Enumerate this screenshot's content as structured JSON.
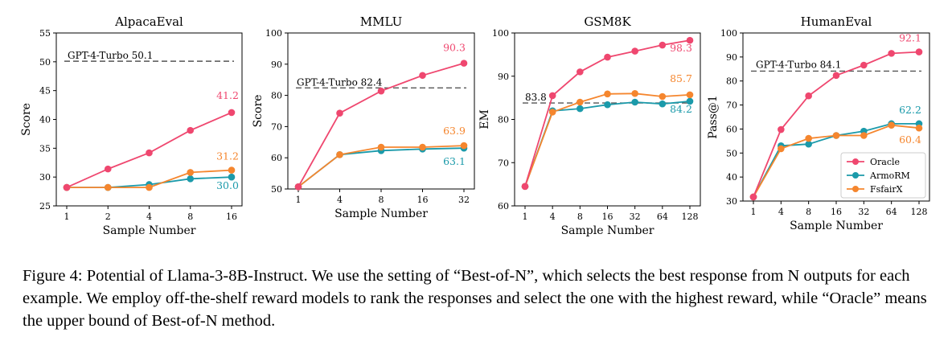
{
  "colors": {
    "oracle": "#ef476f",
    "armorm": "#1b9aaa",
    "fsfairx": "#f5862e",
    "reference": "#555555"
  },
  "legend": {
    "items": [
      "Oracle",
      "ArmoRM",
      "FsfairX"
    ],
    "placement": "lower-right of HumanEval panel"
  },
  "chart_data": [
    {
      "type": "line",
      "title": "AlpacaEval",
      "xlabel": "Sample Number",
      "ylabel": "Score",
      "categories": [
        "1",
        "2",
        "4",
        "8",
        "16"
      ],
      "ylim": [
        25,
        55
      ],
      "yticks": [
        25,
        30,
        35,
        40,
        45,
        50,
        55
      ],
      "grid": false,
      "reference": {
        "label": "GPT-4-Turbo 50.1",
        "value": 50.1
      },
      "series": [
        {
          "name": "Oracle",
          "values": [
            28.2,
            31.4,
            34.2,
            38.1,
            41.2
          ]
        },
        {
          "name": "ArmoRM",
          "values": [
            28.2,
            28.2,
            28.7,
            29.7,
            30.0
          ]
        },
        {
          "name": "FsfairX",
          "values": [
            28.2,
            28.2,
            28.2,
            30.8,
            31.2
          ]
        }
      ],
      "end_labels": {
        "Oracle": "41.2",
        "ArmoRM": "30.0",
        "FsfairX": "31.2"
      }
    },
    {
      "type": "line",
      "title": "MMLU",
      "xlabel": "Sample Number",
      "ylabel": "Score",
      "categories": [
        "1",
        "4",
        "8",
        "16",
        "32"
      ],
      "ylim": [
        50,
        100
      ],
      "yticks": [
        50,
        60,
        70,
        80,
        90,
        100
      ],
      "grid": false,
      "reference": {
        "label": "GPT-4-Turbo 82.4",
        "value": 82.4
      },
      "series": [
        {
          "name": "Oracle",
          "values": [
            50.7,
            74.3,
            81.4,
            86.4,
            90.3
          ]
        },
        {
          "name": "ArmoRM",
          "values": [
            50.7,
            61.0,
            62.3,
            62.8,
            63.1
          ]
        },
        {
          "name": "FsfairX",
          "values": [
            50.7,
            61.0,
            63.4,
            63.4,
            63.9
          ]
        }
      ],
      "end_labels": {
        "Oracle": "90.3",
        "ArmoRM": "63.1",
        "FsfairX": "63.9"
      }
    },
    {
      "type": "line",
      "title": "GSM8K",
      "xlabel": "Sample Number",
      "ylabel": "EM",
      "categories": [
        "1",
        "4",
        "8",
        "16",
        "32",
        "64",
        "128"
      ],
      "ylim": [
        60,
        100
      ],
      "yticks": [
        60,
        70,
        80,
        90,
        100
      ],
      "grid": false,
      "reference": {
        "label": "83.8",
        "value": 83.8
      },
      "series": [
        {
          "name": "Oracle",
          "values": [
            64.5,
            85.5,
            91.0,
            94.4,
            95.8,
            97.2,
            98.3
          ]
        },
        {
          "name": "ArmoRM",
          "values": [
            64.5,
            82.0,
            82.5,
            83.4,
            84.0,
            83.6,
            84.2
          ]
        },
        {
          "name": "FsfairX",
          "values": [
            64.5,
            81.7,
            84.0,
            85.9,
            86.0,
            85.3,
            85.7
          ]
        }
      ],
      "end_labels": {
        "Oracle": "98.3",
        "ArmoRM": "84.2",
        "FsfairX": "85.7"
      }
    },
    {
      "type": "line",
      "title": "HumanEval",
      "xlabel": "Sample Number",
      "ylabel": "Pass@1",
      "categories": [
        "1",
        "4",
        "8",
        "16",
        "32",
        "64",
        "128"
      ],
      "ylim": [
        30,
        100
      ],
      "yticks": [
        30,
        40,
        50,
        60,
        70,
        80,
        90,
        100
      ],
      "grid": false,
      "reference": {
        "label": "GPT-4-Turbo 84.1",
        "value": 84.1
      },
      "series": [
        {
          "name": "Oracle",
          "values": [
            31.7,
            59.8,
            73.8,
            82.3,
            86.6,
            91.5,
            92.1
          ]
        },
        {
          "name": "ArmoRM",
          "values": [
            31.7,
            53.0,
            53.7,
            57.3,
            59.1,
            62.2,
            62.2
          ]
        },
        {
          "name": "FsfairX",
          "values": [
            31.7,
            51.8,
            56.1,
            57.3,
            57.3,
            61.6,
            60.4
          ]
        }
      ],
      "end_labels": {
        "Oracle": "92.1",
        "ArmoRM": "62.2",
        "FsfairX": "60.4"
      }
    }
  ],
  "caption": "Figure 4: Potential of Llama-3-8B-Instruct. We use the setting of “Best-of-N”, which selects the best response from N outputs for each example. We employ off-the-shelf reward models to rank the responses and select the one with the highest reward, while “Oracle” means the upper bound of Best-of-N method."
}
